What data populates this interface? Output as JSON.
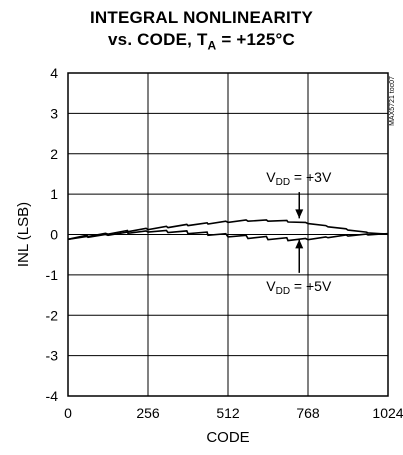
{
  "chart_data": {
    "type": "line",
    "title_line1": "INTEGRAL NONLINEARITY",
    "title_line2_prefix": "vs. CODE, T",
    "title_line2_sub": "A",
    "title_line2_suffix": " = +125°C",
    "xlabel": "CODE",
    "ylabel": "INL (LSB)",
    "xlim": [
      0,
      1024
    ],
    "ylim": [
      -4,
      4
    ],
    "xticks": [
      0,
      256,
      512,
      768,
      1024
    ],
    "xtick_labels": [
      "0",
      "256",
      "512",
      "768",
      "1024"
    ],
    "yticks": [
      4,
      3,
      2,
      1,
      0,
      -1,
      -2,
      -3,
      -4
    ],
    "ytick_labels": [
      "4",
      "3",
      "2",
      "1",
      "0",
      "-1",
      "-2",
      "-3",
      "-4"
    ],
    "grid": true,
    "side_label": "MAX5721 toc07",
    "series": [
      {
        "name": "VDD = +3V",
        "x": [
          0,
          60,
          64,
          120,
          128,
          190,
          192,
          250,
          256,
          315,
          320,
          380,
          384,
          445,
          448,
          505,
          512,
          570,
          576,
          635,
          640,
          700,
          704,
          760,
          768,
          825,
          832,
          890,
          896,
          955,
          960,
          1020,
          1024
        ],
        "y": [
          -0.12,
          -0.02,
          -0.05,
          0.03,
          0.01,
          0.1,
          0.07,
          0.15,
          0.12,
          0.2,
          0.17,
          0.25,
          0.22,
          0.29,
          0.26,
          0.33,
          0.3,
          0.36,
          0.33,
          0.36,
          0.33,
          0.35,
          0.31,
          0.3,
          0.27,
          0.22,
          0.19,
          0.14,
          0.11,
          0.06,
          0.04,
          0.01,
          0.0
        ]
      },
      {
        "name": "VDD = +5V",
        "x": [
          0,
          60,
          64,
          120,
          128,
          190,
          192,
          250,
          256,
          315,
          320,
          380,
          384,
          445,
          448,
          505,
          512,
          570,
          576,
          635,
          640,
          700,
          704,
          760,
          768,
          825,
          832,
          890,
          896,
          955,
          960,
          1020,
          1024
        ],
        "y": [
          -0.12,
          -0.05,
          -0.07,
          0.0,
          -0.02,
          0.06,
          0.03,
          0.09,
          0.06,
          0.1,
          0.05,
          0.09,
          0.02,
          0.06,
          -0.02,
          0.02,
          -0.06,
          -0.02,
          -0.1,
          -0.05,
          -0.13,
          -0.08,
          -0.15,
          -0.1,
          -0.13,
          -0.06,
          -0.08,
          -0.01,
          -0.04,
          0.01,
          -0.01,
          0.02,
          0.0
        ]
      }
    ],
    "annotations": [
      {
        "label_main": "V",
        "label_sub": "DD",
        "label_rest": " = +3V",
        "arrow_x": 740,
        "arrow_from": 1.05,
        "arrow_to": 0.4
      },
      {
        "label_main": "V",
        "label_sub": "DD",
        "label_rest": " = +5V",
        "arrow_x": 740,
        "arrow_from": -0.95,
        "arrow_to": -0.12
      }
    ]
  }
}
